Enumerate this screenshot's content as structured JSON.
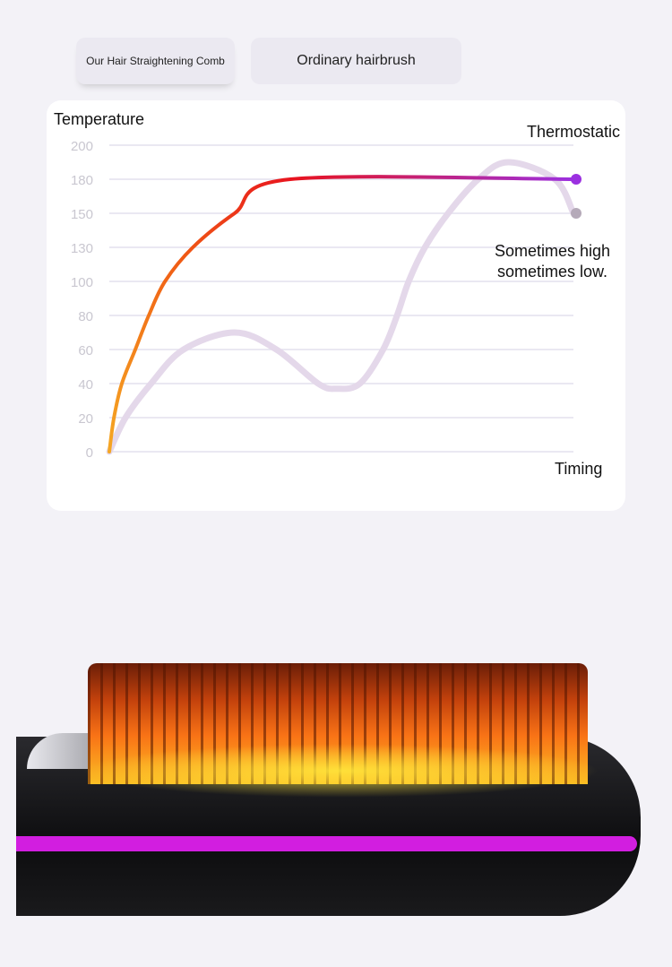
{
  "tabs": [
    {
      "label": "Our Hair Straightening Comb"
    },
    {
      "label": "Ordinary hairbrush"
    }
  ],
  "chart_data": {
    "type": "line",
    "ylabel": "Temperature",
    "xlabel": "Timing",
    "yticks": [
      0,
      20,
      40,
      60,
      80,
      100,
      130,
      150,
      180,
      200
    ],
    "ylim": [
      0,
      200
    ],
    "xlim": [
      0,
      100
    ],
    "grid": true,
    "series": [
      {
        "name": "Thermostatic",
        "color": "#f97316",
        "end_color": "#9b30e0",
        "x": [
          0,
          1,
          2.7,
          5.6,
          8.5,
          12,
          18,
          27,
          39,
          100
        ],
        "y": [
          0,
          20,
          40,
          60,
          80,
          100,
          130,
          150,
          180,
          180
        ]
      },
      {
        "name": "Sometimes high sometimes low.",
        "color": "#e4d8ea",
        "x": [
          0,
          3.5,
          9,
          16,
          27,
          36,
          45,
          49,
          54,
          59,
          62,
          64.5,
          68,
          73,
          79.5,
          86,
          96,
          100
        ],
        "y": [
          0,
          20,
          40,
          60,
          70,
          60,
          40,
          37,
          40,
          60,
          80,
          100,
          130,
          150,
          180,
          190,
          180,
          150
        ]
      }
    ]
  }
}
